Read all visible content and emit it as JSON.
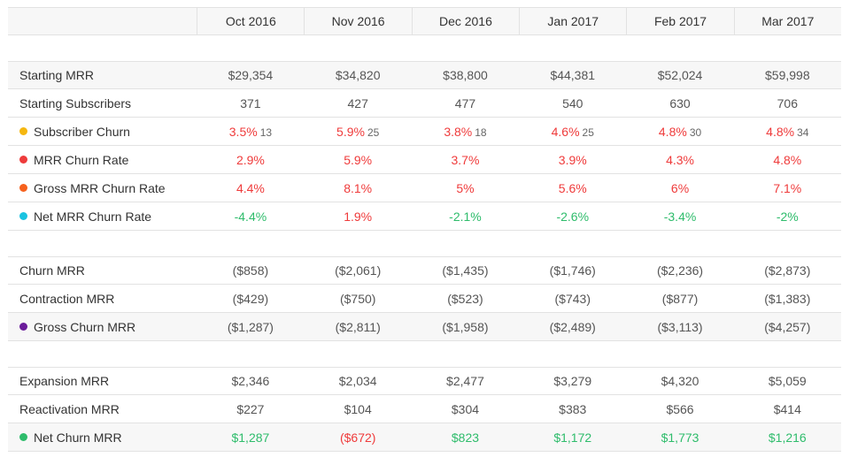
{
  "colors": {
    "red": "#ef3b3b",
    "green": "#2ebc6b",
    "yellow": "#f5b70f",
    "dot_red": "#ee3b3b",
    "orange": "#f6611d",
    "cyan": "#19c3e1",
    "purple": "#6a1b9a",
    "green_dot": "#2ebc6b"
  },
  "header": {
    "months": [
      "Oct 2016",
      "Nov 2016",
      "Dec 2016",
      "Jan 2017",
      "Feb 2017",
      "Mar 2017"
    ]
  },
  "sections": [
    {
      "rows": [
        {
          "label": "Starting MRR",
          "values": [
            "$29,354",
            "$34,820",
            "$38,800",
            "$44,381",
            "$52,024",
            "$59,998"
          ]
        },
        {
          "label": "Starting Subscribers",
          "values": [
            "371",
            "427",
            "477",
            "540",
            "630",
            "706"
          ]
        },
        {
          "label": "Subscriber Churn",
          "dot": "yellow",
          "values": [
            "3.5%",
            "5.9%",
            "3.8%",
            "4.6%",
            "4.8%",
            "4.8%"
          ],
          "sub": [
            "13",
            "25",
            "18",
            "25",
            "30",
            "34"
          ]
        },
        {
          "label": "MRR Churn Rate",
          "dot": "dot_red",
          "values": [
            "2.9%",
            "5.9%",
            "3.7%",
            "3.9%",
            "4.3%",
            "4.8%"
          ]
        },
        {
          "label": "Gross MRR Churn Rate",
          "dot": "orange",
          "values": [
            "4.4%",
            "8.1%",
            "5%",
            "5.6%",
            "6%",
            "7.1%"
          ]
        },
        {
          "label": "Net MRR Churn Rate",
          "dot": "cyan",
          "values": [
            "-4.4%",
            "1.9%",
            "-2.1%",
            "-2.6%",
            "-3.4%",
            "-2%"
          ]
        }
      ]
    },
    {
      "rows": [
        {
          "label": "Churn MRR",
          "values": [
            "($858)",
            "($2,061)",
            "($1,435)",
            "($1,746)",
            "($2,236)",
            "($2,873)"
          ]
        },
        {
          "label": "Contraction MRR",
          "values": [
            "($429)",
            "($750)",
            "($523)",
            "($743)",
            "($877)",
            "($1,383)"
          ]
        },
        {
          "label": "Gross Churn MRR",
          "dot": "purple",
          "values": [
            "($1,287)",
            "($2,811)",
            "($1,958)",
            "($2,489)",
            "($3,113)",
            "($4,257)"
          ]
        }
      ]
    },
    {
      "rows": [
        {
          "label": "Expansion MRR",
          "values": [
            "$2,346",
            "$2,034",
            "$2,477",
            "$3,279",
            "$4,320",
            "$5,059"
          ]
        },
        {
          "label": "Reactivation MRR",
          "values": [
            "$227",
            "$104",
            "$304",
            "$383",
            "$566",
            "$414"
          ]
        },
        {
          "label": "Net Churn MRR",
          "dot": "green_dot",
          "values": [
            "$1,287",
            "($672)",
            "$823",
            "$1,172",
            "$1,773",
            "$1,216"
          ]
        }
      ]
    }
  ]
}
